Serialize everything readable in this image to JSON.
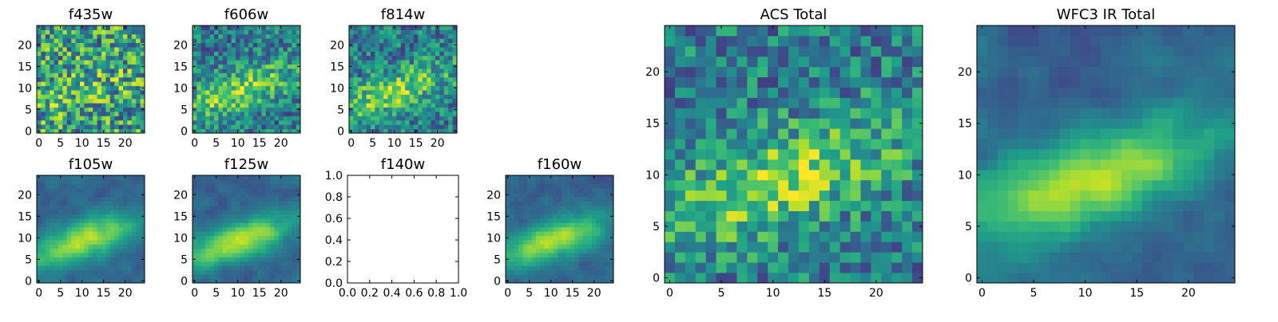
{
  "chart_data": [
    {
      "type": "heatmap",
      "title": "f435w",
      "xticks": [
        "0",
        "5",
        "10",
        "15",
        "20"
      ],
      "yticks": [
        "0",
        "5",
        "10",
        "15",
        "20"
      ],
      "xlim": [
        -0.5,
        24.5
      ],
      "ylim": [
        -0.5,
        24.5
      ],
      "colormap": "viridis",
      "grid": false,
      "pattern": "noisy"
    },
    {
      "type": "heatmap",
      "title": "f606w",
      "xticks": [
        "0",
        "5",
        "10",
        "15",
        "20"
      ],
      "yticks": [
        "0",
        "5",
        "10",
        "15",
        "20"
      ],
      "xlim": [
        -0.5,
        24.5
      ],
      "ylim": [
        -0.5,
        24.5
      ],
      "colormap": "viridis",
      "grid": false,
      "pattern": "band"
    },
    {
      "type": "heatmap",
      "title": "f814w",
      "xticks": [
        "0",
        "5",
        "10",
        "15",
        "20"
      ],
      "yticks": [
        "0",
        "5",
        "10",
        "15",
        "20"
      ],
      "xlim": [
        -0.5,
        24.5
      ],
      "ylim": [
        -0.5,
        24.5
      ],
      "colormap": "viridis",
      "grid": false,
      "pattern": "band"
    },
    {
      "type": "heatmap",
      "title": "f105w",
      "xticks": [
        "0",
        "5",
        "10",
        "15",
        "20"
      ],
      "yticks": [
        "0",
        "5",
        "10",
        "15",
        "20"
      ],
      "xlim": [
        -0.5,
        24.5
      ],
      "ylim": [
        -0.5,
        24.5
      ],
      "colormap": "viridis",
      "grid": false,
      "pattern": "smooth"
    },
    {
      "type": "heatmap",
      "title": "f125w",
      "xticks": [
        "0",
        "5",
        "10",
        "15",
        "20"
      ],
      "yticks": [
        "0",
        "5",
        "10",
        "15",
        "20"
      ],
      "xlim": [
        -0.5,
        24.5
      ],
      "ylim": [
        -0.5,
        24.5
      ],
      "colormap": "viridis",
      "grid": false,
      "pattern": "smooth"
    },
    {
      "type": "empty",
      "title": "f140w",
      "xticks": [
        "0.0",
        "0.2",
        "0.4",
        "0.6",
        "0.8",
        "1.0"
      ],
      "yticks": [
        "0.0",
        "0.2",
        "0.4",
        "0.6",
        "0.8",
        "1.0"
      ],
      "xlim": [
        0,
        1
      ],
      "ylim": [
        0,
        1
      ]
    },
    {
      "type": "heatmap",
      "title": "f160w",
      "xticks": [
        "0",
        "5",
        "10",
        "15",
        "20"
      ],
      "yticks": [
        "0",
        "5",
        "10",
        "15",
        "20"
      ],
      "xlim": [
        -0.5,
        24.5
      ],
      "ylim": [
        -0.5,
        24.5
      ],
      "colormap": "viridis",
      "grid": false,
      "pattern": "smooth"
    },
    {
      "type": "heatmap",
      "title": "ACS Total",
      "xticks": [
        "0",
        "5",
        "10",
        "15",
        "20"
      ],
      "yticks": [
        "0",
        "5",
        "10",
        "15",
        "20"
      ],
      "xlim": [
        -0.5,
        24.5
      ],
      "ylim": [
        -0.5,
        24.5
      ],
      "colormap": "viridis",
      "grid": false,
      "pattern": "band"
    },
    {
      "type": "heatmap",
      "title": "WFC3 IR Total",
      "xticks": [
        "0",
        "5",
        "10",
        "15",
        "20"
      ],
      "yticks": [
        "0",
        "5",
        "10",
        "15",
        "20"
      ],
      "xlim": [
        -0.5,
        24.5
      ],
      "ylim": [
        -0.5,
        24.5
      ],
      "colormap": "viridis",
      "grid": false,
      "pattern": "smooth"
    }
  ]
}
